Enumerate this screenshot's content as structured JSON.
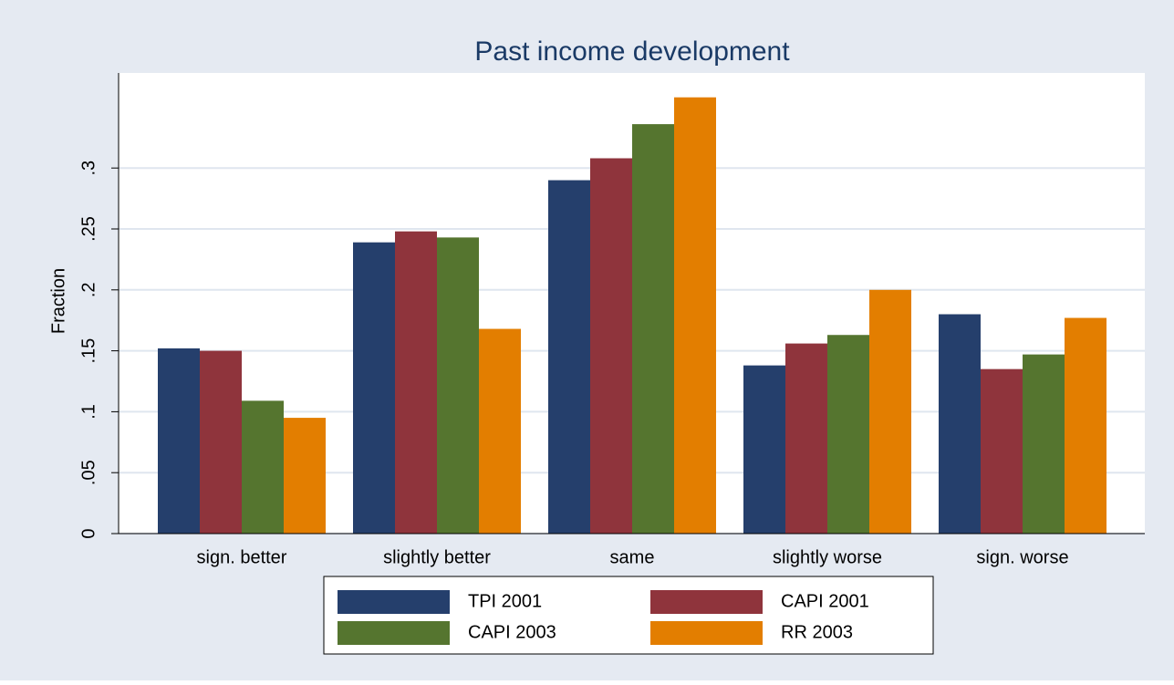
{
  "chart_data": {
    "type": "bar",
    "title": "Past income development",
    "y_label": "Fraction",
    "categories": [
      "sign. better",
      "slightly better",
      "same",
      "slightly worse",
      "sign. worse"
    ],
    "series": [
      {
        "name": "TPI 2001",
        "color": "#253f6c",
        "values": [
          0.152,
          0.239,
          0.29,
          0.138,
          0.18
        ]
      },
      {
        "name": "CAPI 2001",
        "color": "#8f343c",
        "values": [
          0.15,
          0.248,
          0.308,
          0.156,
          0.135
        ]
      },
      {
        "name": "CAPI 2003",
        "color": "#55752f",
        "values": [
          0.109,
          0.243,
          0.336,
          0.163,
          0.147
        ]
      },
      {
        "name": "RR 2003",
        "color": "#e37e00",
        "values": [
          0.095,
          0.168,
          0.358,
          0.2,
          0.177
        ]
      }
    ],
    "ylim": [
      0,
      0.378
    ],
    "yticks": [
      {
        "value": 0,
        "label": "0"
      },
      {
        "value": 0.05,
        "label": ".05"
      },
      {
        "value": 0.1,
        "label": ".1"
      },
      {
        "value": 0.15,
        "label": ".15"
      },
      {
        "value": 0.2,
        "label": ".2"
      },
      {
        "value": 0.25,
        "label": ".25"
      },
      {
        "value": 0.3,
        "label": ".3"
      }
    ],
    "grid": true
  }
}
